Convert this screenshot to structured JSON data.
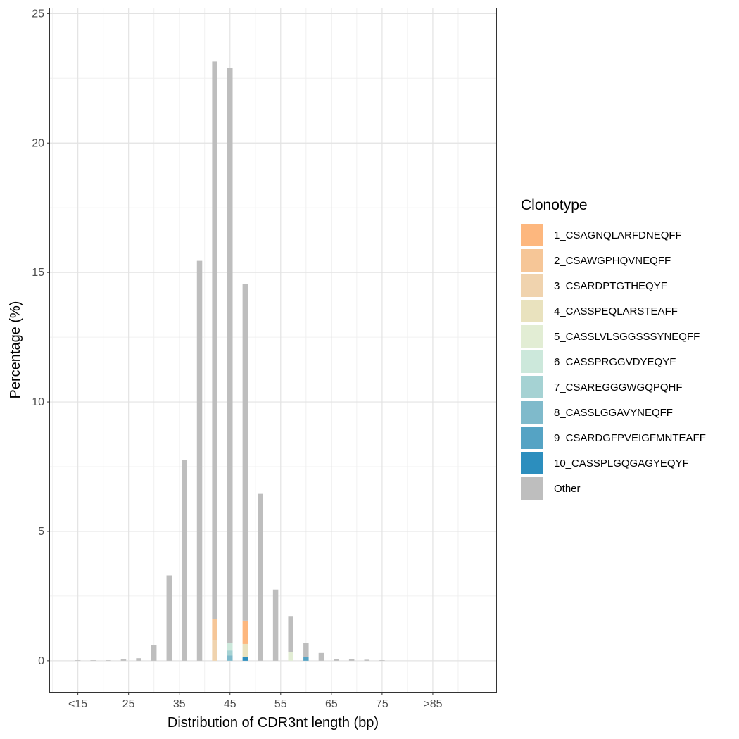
{
  "chart_data": {
    "type": "bar",
    "stacked": true,
    "xlabel": "Distribution of CDR3nt length (bp)",
    "ylabel": "Percentage (%)",
    "ylim": [
      -1.2,
      25.2
    ],
    "xlim": [
      9.5,
      97.5
    ],
    "yticks": [
      0,
      5,
      10,
      15,
      20,
      25
    ],
    "xticks": [
      {
        "value": 15,
        "label": "<15"
      },
      {
        "value": 25,
        "label": "25"
      },
      {
        "value": 35,
        "label": "35"
      },
      {
        "value": 45,
        "label": "45"
      },
      {
        "value": 55,
        "label": "55"
      },
      {
        "value": 65,
        "label": "65"
      },
      {
        "value": 75,
        "label": "75"
      },
      {
        "value": 85,
        "label": ">85"
      }
    ],
    "grid": true,
    "legend_title": "Clonotype",
    "legend_position": "right",
    "categories": [
      15,
      18,
      21,
      24,
      27,
      30,
      33,
      36,
      39,
      42,
      45,
      48,
      51,
      54,
      57,
      60,
      63,
      66,
      69,
      72,
      75
    ],
    "series": [
      {
        "name": "1_CSAGNQLARFDNEQFF",
        "color": "#FDB77E",
        "values": [
          0,
          0,
          0,
          0,
          0,
          0,
          0,
          0,
          0,
          0,
          0,
          0.9,
          0,
          0,
          0,
          0,
          0,
          0,
          0,
          0,
          0
        ]
      },
      {
        "name": "2_CSAWGPHQVNEQFF",
        "color": "#F6C697",
        "values": [
          0,
          0,
          0,
          0,
          0,
          0,
          0,
          0,
          0,
          0.8,
          0,
          0,
          0,
          0,
          0,
          0,
          0,
          0,
          0,
          0,
          0
        ]
      },
      {
        "name": "3_CSARDPTGTHEQYF",
        "color": "#F0D3AE",
        "values": [
          0,
          0,
          0,
          0,
          0,
          0,
          0,
          0,
          0,
          0.8,
          0,
          0,
          0,
          0,
          0,
          0,
          0,
          0,
          0,
          0,
          0
        ]
      },
      {
        "name": "4_CASSPEQLARSTEAFF",
        "color": "#E9E2BE",
        "values": [
          0,
          0,
          0,
          0,
          0,
          0,
          0,
          0,
          0,
          0,
          0,
          0.5,
          0,
          0,
          0,
          0,
          0,
          0,
          0,
          0,
          0
        ]
      },
      {
        "name": "5_CASSLVLSGGSSSYNEQFF",
        "color": "#E2EDD4",
        "values": [
          0,
          0,
          0,
          0,
          0,
          0,
          0,
          0,
          0,
          0,
          0,
          0,
          0,
          0,
          0.35,
          0,
          0,
          0,
          0,
          0,
          0
        ]
      },
      {
        "name": "6_CASSPRGGVDYEQYF",
        "color": "#CCE8DB",
        "values": [
          0,
          0,
          0,
          0,
          0,
          0,
          0,
          0,
          0,
          0,
          0.3,
          0,
          0,
          0,
          0,
          0,
          0,
          0,
          0,
          0,
          0
        ]
      },
      {
        "name": "7_CSAREGGGWGQPQHF",
        "color": "#A5D2D3",
        "values": [
          0,
          0,
          0,
          0,
          0,
          0,
          0,
          0,
          0,
          0,
          0.2,
          0,
          0,
          0,
          0,
          0,
          0,
          0,
          0,
          0,
          0
        ]
      },
      {
        "name": "8_CASSLGGAVYNEQFF",
        "color": "#7FBACB",
        "values": [
          0,
          0,
          0,
          0,
          0,
          0,
          0,
          0,
          0,
          0,
          0.2,
          0,
          0,
          0,
          0,
          0,
          0,
          0,
          0,
          0,
          0
        ]
      },
      {
        "name": "9_CSARDGFPVEIGFMNTEAFF",
        "color": "#55A3C4",
        "values": [
          0,
          0,
          0,
          0,
          0,
          0,
          0,
          0,
          0,
          0,
          0,
          0,
          0,
          0,
          0,
          0.15,
          0,
          0,
          0,
          0,
          0
        ]
      },
      {
        "name": "10_CASSPLGQGAGYEQYF",
        "color": "#2C8EBE",
        "values": [
          0,
          0,
          0,
          0,
          0,
          0,
          0,
          0,
          0,
          0,
          0,
          0.15,
          0,
          0,
          0,
          0,
          0,
          0,
          0,
          0,
          0
        ]
      },
      {
        "name": "Other",
        "color": "#BEBEBE",
        "values": [
          0.02,
          0.02,
          0.02,
          0.05,
          0.1,
          0.6,
          3.3,
          7.75,
          15.45,
          21.55,
          22.2,
          13.0,
          6.45,
          2.75,
          1.38,
          0.53,
          0.3,
          0.06,
          0.06,
          0.04,
          0.02
        ]
      }
    ]
  }
}
